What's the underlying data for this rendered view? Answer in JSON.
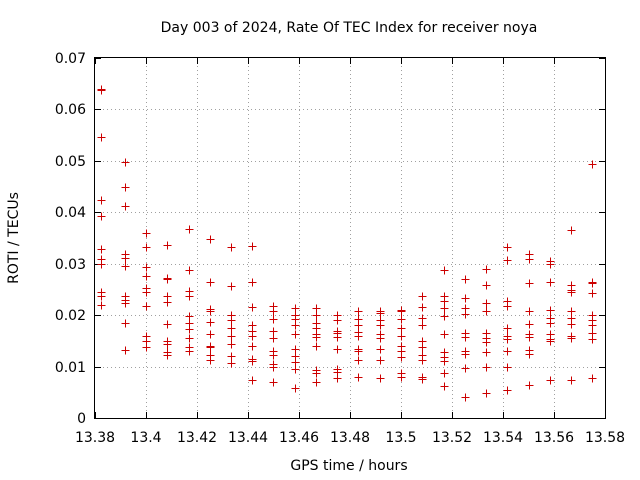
{
  "chart_data": {
    "type": "scatter",
    "title": "Day 003 of 2024, Rate Of TEC Index for receiver noya",
    "xlabel": "GPS time / hours",
    "ylabel": "ROTI / TECUs",
    "xlim": [
      13.38,
      13.58
    ],
    "ylim": [
      0,
      0.07
    ],
    "grid": true,
    "color": "#cc0000",
    "xticks": [
      13.38,
      13.4,
      13.42,
      13.44,
      13.46,
      13.48,
      13.5,
      13.52,
      13.54,
      13.56,
      13.58
    ],
    "xtick_labels": [
      "13.38",
      "13.4",
      "13.42",
      "13.44",
      "13.46",
      "13.48",
      "13.5",
      "13.52",
      "13.54",
      "13.56",
      "13.58"
    ],
    "yticks": [
      0,
      0.01,
      0.02,
      0.03,
      0.04,
      0.05,
      0.06,
      0.07
    ],
    "ytick_labels": [
      "0",
      "0.01",
      "0.02",
      "0.03",
      "0.04",
      "0.05",
      "0.06",
      "0.07"
    ],
    "series": [
      {
        "name": "ROTI",
        "points": [
          [
            13.3825,
            0.0638
          ],
          [
            13.3825,
            0.064
          ],
          [
            13.3825,
            0.0547
          ],
          [
            13.3825,
            0.0423
          ],
          [
            13.3825,
            0.0392
          ],
          [
            13.3825,
            0.0328
          ],
          [
            13.3825,
            0.031
          ],
          [
            13.3825,
            0.03
          ],
          [
            13.3825,
            0.0245
          ],
          [
            13.3825,
            0.0238
          ],
          [
            13.3825,
            0.022
          ],
          [
            13.3917,
            0.0497
          ],
          [
            13.3917,
            0.045
          ],
          [
            13.3917,
            0.0413
          ],
          [
            13.3917,
            0.0318
          ],
          [
            13.3917,
            0.0312
          ],
          [
            13.3917,
            0.0296
          ],
          [
            13.3917,
            0.0238
          ],
          [
            13.3917,
            0.023
          ],
          [
            13.3917,
            0.0223
          ],
          [
            13.3917,
            0.0184
          ],
          [
            13.3917,
            0.0132
          ],
          [
            13.4,
            0.036
          ],
          [
            13.4,
            0.0332
          ],
          [
            13.4,
            0.0293
          ],
          [
            13.4,
            0.0277
          ],
          [
            13.4,
            0.0253
          ],
          [
            13.4,
            0.0245
          ],
          [
            13.4,
            0.0218
          ],
          [
            13.4,
            0.016
          ],
          [
            13.4,
            0.015
          ],
          [
            13.4,
            0.0138
          ],
          [
            13.4083,
            0.0337
          ],
          [
            13.4083,
            0.0273
          ],
          [
            13.4083,
            0.027
          ],
          [
            13.4083,
            0.0237
          ],
          [
            13.4083,
            0.0225
          ],
          [
            13.4083,
            0.0183
          ],
          [
            13.4083,
            0.015
          ],
          [
            13.4083,
            0.0143
          ],
          [
            13.4083,
            0.0128
          ],
          [
            13.4083,
            0.0123
          ],
          [
            13.4167,
            0.0368
          ],
          [
            13.4167,
            0.0288
          ],
          [
            13.4167,
            0.0246
          ],
          [
            13.4167,
            0.0237
          ],
          [
            13.4167,
            0.0198
          ],
          [
            13.4167,
            0.0185
          ],
          [
            13.4167,
            0.0173
          ],
          [
            13.4167,
            0.0155
          ],
          [
            13.4167,
            0.0138
          ],
          [
            13.4167,
            0.0131
          ],
          [
            13.425,
            0.0349
          ],
          [
            13.425,
            0.0264
          ],
          [
            13.425,
            0.0212
          ],
          [
            13.425,
            0.0208
          ],
          [
            13.425,
            0.0187
          ],
          [
            13.425,
            0.0164
          ],
          [
            13.425,
            0.014
          ],
          [
            13.425,
            0.0139
          ],
          [
            13.425,
            0.0123
          ],
          [
            13.425,
            0.0113
          ],
          [
            13.4333,
            0.0333
          ],
          [
            13.4333,
            0.0256
          ],
          [
            13.4333,
            0.02
          ],
          [
            13.4333,
            0.019
          ],
          [
            13.4333,
            0.0175
          ],
          [
            13.4333,
            0.016
          ],
          [
            13.4333,
            0.0143
          ],
          [
            13.4333,
            0.012
          ],
          [
            13.4333,
            0.0106
          ],
          [
            13.4417,
            0.0334
          ],
          [
            13.4417,
            0.0265
          ],
          [
            13.4417,
            0.0216
          ],
          [
            13.4417,
            0.018
          ],
          [
            13.4417,
            0.017
          ],
          [
            13.4417,
            0.016
          ],
          [
            13.4417,
            0.014
          ],
          [
            13.4417,
            0.0115
          ],
          [
            13.4417,
            0.011
          ],
          [
            13.4417,
            0.0073
          ],
          [
            13.45,
            0.0218
          ],
          [
            13.45,
            0.0208
          ],
          [
            13.45,
            0.0192
          ],
          [
            13.45,
            0.017
          ],
          [
            13.45,
            0.0155
          ],
          [
            13.45,
            0.0131
          ],
          [
            13.45,
            0.0123
          ],
          [
            13.45,
            0.0105
          ],
          [
            13.45,
            0.01
          ],
          [
            13.45,
            0.007
          ],
          [
            13.4583,
            0.0213
          ],
          [
            13.4583,
            0.02
          ],
          [
            13.4583,
            0.0193
          ],
          [
            13.4583,
            0.018
          ],
          [
            13.4583,
            0.0163
          ],
          [
            13.4583,
            0.0135
          ],
          [
            13.4583,
            0.012
          ],
          [
            13.4583,
            0.0108
          ],
          [
            13.4583,
            0.0095
          ],
          [
            13.4583,
            0.0058
          ],
          [
            13.4667,
            0.0213
          ],
          [
            13.4667,
            0.02
          ],
          [
            13.4667,
            0.0185
          ],
          [
            13.4667,
            0.0175
          ],
          [
            13.4667,
            0.0163
          ],
          [
            13.4667,
            0.0158
          ],
          [
            13.4667,
            0.014
          ],
          [
            13.4667,
            0.0093
          ],
          [
            13.4667,
            0.0088
          ],
          [
            13.4667,
            0.007
          ],
          [
            13.475,
            0.02
          ],
          [
            13.475,
            0.019
          ],
          [
            13.475,
            0.017
          ],
          [
            13.475,
            0.0165
          ],
          [
            13.475,
            0.0158
          ],
          [
            13.475,
            0.0135
          ],
          [
            13.475,
            0.0095
          ],
          [
            13.475,
            0.009
          ],
          [
            13.475,
            0.0078
          ],
          [
            13.4833,
            0.0208
          ],
          [
            13.4833,
            0.0193
          ],
          [
            13.4833,
            0.018
          ],
          [
            13.4833,
            0.0168
          ],
          [
            13.4833,
            0.016
          ],
          [
            13.4833,
            0.0135
          ],
          [
            13.4833,
            0.013
          ],
          [
            13.4833,
            0.0113
          ],
          [
            13.4833,
            0.008
          ],
          [
            13.4917,
            0.0208
          ],
          [
            13.4917,
            0.0205
          ],
          [
            13.4917,
            0.019
          ],
          [
            13.4917,
            0.018
          ],
          [
            13.4917,
            0.0163
          ],
          [
            13.4917,
            0.0155
          ],
          [
            13.4917,
            0.0135
          ],
          [
            13.4917,
            0.0113
          ],
          [
            13.4917,
            0.0077
          ],
          [
            13.5,
            0.021
          ],
          [
            13.5,
            0.0208
          ],
          [
            13.5,
            0.0193
          ],
          [
            13.5,
            0.0175
          ],
          [
            13.5,
            0.016
          ],
          [
            13.5,
            0.014
          ],
          [
            13.5,
            0.013
          ],
          [
            13.5,
            0.0118
          ],
          [
            13.5,
            0.0088
          ],
          [
            13.5,
            0.008
          ],
          [
            13.5083,
            0.0238
          ],
          [
            13.5083,
            0.0215
          ],
          [
            13.5083,
            0.0195
          ],
          [
            13.5083,
            0.018
          ],
          [
            13.5083,
            0.015
          ],
          [
            13.5083,
            0.0138
          ],
          [
            13.5083,
            0.0123
          ],
          [
            13.5083,
            0.0113
          ],
          [
            13.5083,
            0.008
          ],
          [
            13.5083,
            0.0075
          ],
          [
            13.5167,
            0.0288
          ],
          [
            13.5167,
            0.0238
          ],
          [
            13.5167,
            0.0228
          ],
          [
            13.5167,
            0.0213
          ],
          [
            13.5167,
            0.0198
          ],
          [
            13.5167,
            0.0163
          ],
          [
            13.5167,
            0.0128
          ],
          [
            13.5167,
            0.0118
          ],
          [
            13.5167,
            0.011
          ],
          [
            13.5167,
            0.0088
          ],
          [
            13.5167,
            0.0063
          ],
          [
            13.525,
            0.027
          ],
          [
            13.525,
            0.0233
          ],
          [
            13.525,
            0.0213
          ],
          [
            13.525,
            0.0203
          ],
          [
            13.525,
            0.0165
          ],
          [
            13.525,
            0.0158
          ],
          [
            13.525,
            0.013
          ],
          [
            13.525,
            0.0125
          ],
          [
            13.525,
            0.0098
          ],
          [
            13.525,
            0.004
          ],
          [
            13.5333,
            0.029
          ],
          [
            13.5333,
            0.0258
          ],
          [
            13.5333,
            0.0223
          ],
          [
            13.5333,
            0.0208
          ],
          [
            13.5333,
            0.0165
          ],
          [
            13.5333,
            0.0155
          ],
          [
            13.5333,
            0.0148
          ],
          [
            13.5333,
            0.0128
          ],
          [
            13.5333,
            0.01
          ],
          [
            13.5333,
            0.0048
          ],
          [
            13.5417,
            0.0333
          ],
          [
            13.5417,
            0.0308
          ],
          [
            13.5417,
            0.0228
          ],
          [
            13.5417,
            0.0218
          ],
          [
            13.5417,
            0.0175
          ],
          [
            13.5417,
            0.016
          ],
          [
            13.5417,
            0.0153
          ],
          [
            13.5417,
            0.013
          ],
          [
            13.5417,
            0.01
          ],
          [
            13.5417,
            0.0055
          ],
          [
            13.55,
            0.0318
          ],
          [
            13.55,
            0.031
          ],
          [
            13.55,
            0.0263
          ],
          [
            13.55,
            0.0208
          ],
          [
            13.55,
            0.0183
          ],
          [
            13.55,
            0.0163
          ],
          [
            13.55,
            0.0158
          ],
          [
            13.55,
            0.0133
          ],
          [
            13.55,
            0.0125
          ],
          [
            13.55,
            0.0065
          ],
          [
            13.5583,
            0.0305
          ],
          [
            13.5583,
            0.03
          ],
          [
            13.5583,
            0.0265
          ],
          [
            13.5583,
            0.021
          ],
          [
            13.5583,
            0.0195
          ],
          [
            13.5583,
            0.0185
          ],
          [
            13.5583,
            0.0163
          ],
          [
            13.5583,
            0.0153
          ],
          [
            13.5583,
            0.015
          ],
          [
            13.5583,
            0.0073
          ],
          [
            13.5667,
            0.0365
          ],
          [
            13.5667,
            0.0258
          ],
          [
            13.5667,
            0.0248
          ],
          [
            13.5667,
            0.0245
          ],
          [
            13.5667,
            0.0208
          ],
          [
            13.5667,
            0.0195
          ],
          [
            13.5667,
            0.0183
          ],
          [
            13.5667,
            0.016
          ],
          [
            13.5667,
            0.0155
          ],
          [
            13.5667,
            0.0073
          ],
          [
            13.575,
            0.0493
          ],
          [
            13.575,
            0.0265
          ],
          [
            13.575,
            0.0263
          ],
          [
            13.575,
            0.0243
          ],
          [
            13.575,
            0.02
          ],
          [
            13.575,
            0.019
          ],
          [
            13.575,
            0.018
          ],
          [
            13.575,
            0.0165
          ],
          [
            13.575,
            0.0153
          ],
          [
            13.575,
            0.0078
          ]
        ]
      }
    ]
  }
}
